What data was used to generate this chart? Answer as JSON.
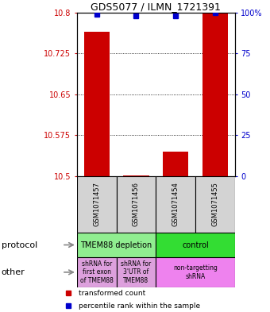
{
  "title": "GDS5077 / ILMN_1721391",
  "samples": [
    "GSM1071457",
    "GSM1071456",
    "GSM1071454",
    "GSM1071455"
  ],
  "red_values": [
    10.765,
    10.502,
    10.545,
    10.8
  ],
  "red_base": 10.5,
  "blue_values": [
    99,
    98,
    98,
    100
  ],
  "ylim_left": [
    10.5,
    10.8
  ],
  "ylim_right": [
    0,
    100
  ],
  "yticks_left": [
    10.5,
    10.575,
    10.65,
    10.725,
    10.8
  ],
  "yticks_right": [
    0,
    25,
    50,
    75,
    100
  ],
  "ytick_labels_left": [
    "10.5",
    "10.575",
    "10.65",
    "10.725",
    "10.8"
  ],
  "ytick_labels_right": [
    "0",
    "25",
    "50",
    "75",
    "100%"
  ],
  "bar_color": "#CC0000",
  "dot_color": "#0000CC",
  "label_color_left": "#CC0000",
  "label_color_right": "#0000CC",
  "bg_color": "#FFFFFF",
  "sample_box_color": "#D3D3D3",
  "proto_spans": [
    [
      0,
      2,
      "TMEM88 depletion",
      "#90EE90"
    ],
    [
      2,
      4,
      "control",
      "#33DD33"
    ]
  ],
  "other_spans": [
    [
      0,
      1,
      "shRNA for\nfirst exon\nof TMEM88",
      "#DDA0DD"
    ],
    [
      1,
      2,
      "shRNA for\n3'UTR of\nTMEM88",
      "#DDA0DD"
    ],
    [
      2,
      4,
      "non-targetting\nshRNA",
      "#EE82EE"
    ]
  ],
  "legend_items": [
    [
      "#CC0000",
      "transformed count"
    ],
    [
      "#0000CC",
      "percentile rank within the sample"
    ]
  ]
}
